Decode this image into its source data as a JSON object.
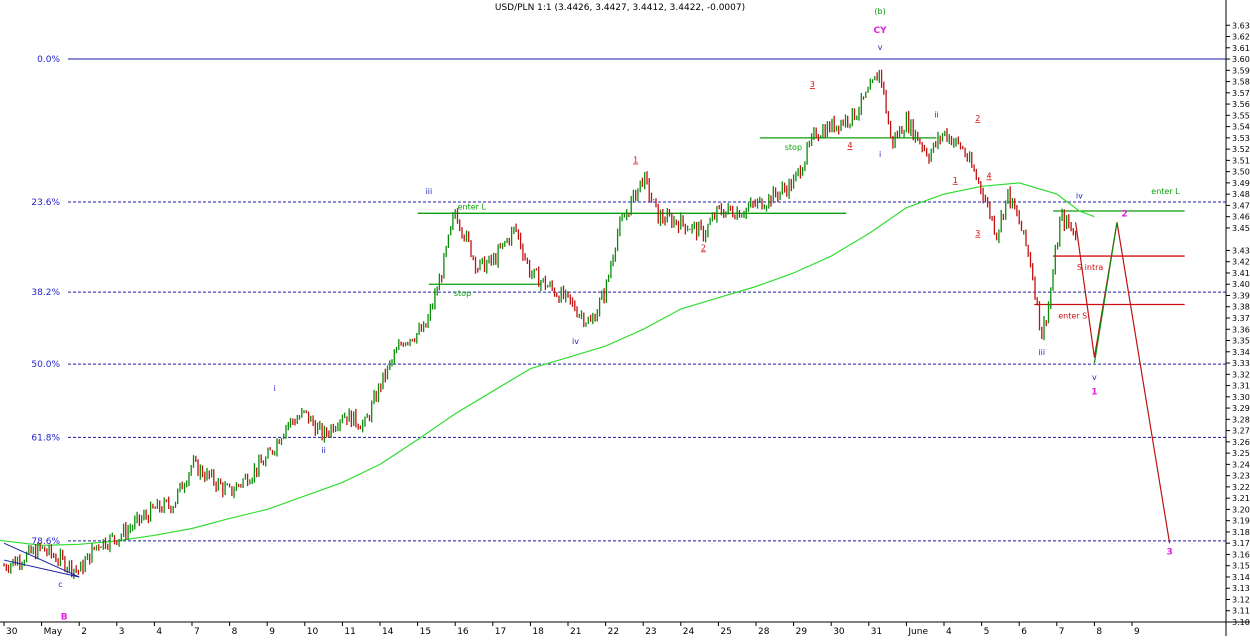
{
  "chart_data": {
    "type": "line",
    "title": "USD/PLN 1:1 (3.4426, 3.4427, 3.4412, 3.4422, -0.0007)",
    "y_ticks": [
      "3.63",
      "3.62",
      "3.61",
      "3.60",
      "3.59",
      "3.58",
      "3.57",
      "3.56",
      "3.55",
      "3.54",
      "3.53",
      "3.52",
      "3.51",
      "3.50",
      "3.49",
      "3.48",
      "3.47",
      "3.46",
      "3.45",
      "3.43",
      "3.42",
      "3.41",
      "3.40",
      "3.39",
      "3.38",
      "3.37",
      "3.36",
      "3.35",
      "3.34",
      "3.33",
      "3.32",
      "3.31",
      "3.30",
      "3.29",
      "3.28",
      "3.27",
      "3.26",
      "3.25",
      "3.24",
      "3.23",
      "3.22",
      "3.21",
      "3.20",
      "3.19",
      "3.18",
      "3.17",
      "3.16",
      "3.15",
      "3.14",
      "3.13",
      "3.12",
      "3.11",
      "3.10"
    ],
    "ylim": [
      3.1,
      3.64
    ],
    "x_ticks": [
      "30",
      "May",
      "2",
      "3",
      "4",
      "7",
      "8",
      "9",
      "10",
      "11",
      "14",
      "15",
      "16",
      "17",
      "18",
      "21",
      "22",
      "23",
      "24",
      "25",
      "28",
      "29",
      "30",
      "31",
      "June",
      "4",
      "5",
      "6",
      "7",
      "8",
      "9"
    ],
    "fib_levels": [
      {
        "label": "0.0%",
        "y": 3.6
      },
      {
        "label": "23.6%",
        "y": 3.473
      },
      {
        "label": "38.2%",
        "y": 3.393
      },
      {
        "label": "50.0%",
        "y": 3.329
      },
      {
        "label": "61.8%",
        "y": 3.264
      },
      {
        "label": "78.6%",
        "y": 3.172
      }
    ],
    "price_series": [
      {
        "x": 0,
        "y": 3.15
      },
      {
        "x": 1,
        "y": 3.165
      },
      {
        "x": 2,
        "y": 3.145
      },
      {
        "x": 2.5,
        "y": 3.17
      },
      {
        "x": 3,
        "y": 3.175
      },
      {
        "x": 4,
        "y": 3.2
      },
      {
        "x": 4.5,
        "y": 3.205
      },
      {
        "x": 5,
        "y": 3.24
      },
      {
        "x": 6,
        "y": 3.215
      },
      {
        "x": 7,
        "y": 3.245
      },
      {
        "x": 7.5,
        "y": 3.275
      },
      {
        "x": 8,
        "y": 3.285
      },
      {
        "x": 8.5,
        "y": 3.265
      },
      {
        "x": 9,
        "y": 3.285
      },
      {
        "x": 9.6,
        "y": 3.275
      },
      {
        "x": 10,
        "y": 3.31
      },
      {
        "x": 10.6,
        "y": 3.35
      },
      {
        "x": 11.2,
        "y": 3.36
      },
      {
        "x": 11.6,
        "y": 3.405
      },
      {
        "x": 12,
        "y": 3.465
      },
      {
        "x": 12.6,
        "y": 3.415
      },
      {
        "x": 13,
        "y": 3.42
      },
      {
        "x": 13.6,
        "y": 3.45
      },
      {
        "x": 14,
        "y": 3.41
      },
      {
        "x": 14.6,
        "y": 3.395
      },
      {
        "x": 15,
        "y": 3.385
      },
      {
        "x": 15.6,
        "y": 3.365
      },
      {
        "x": 16,
        "y": 3.395
      },
      {
        "x": 16.3,
        "y": 3.445
      },
      {
        "x": 17,
        "y": 3.495
      },
      {
        "x": 17.4,
        "y": 3.46
      },
      {
        "x": 18,
        "y": 3.455
      },
      {
        "x": 18.6,
        "y": 3.445
      },
      {
        "x": 19,
        "y": 3.465
      },
      {
        "x": 19.6,
        "y": 3.465
      },
      {
        "x": 20.3,
        "y": 3.475
      },
      {
        "x": 21,
        "y": 3.49
      },
      {
        "x": 21.6,
        "y": 3.535
      },
      {
        "x": 22,
        "y": 3.54
      },
      {
        "x": 22.6,
        "y": 3.55
      },
      {
        "x": 23,
        "y": 3.57
      },
      {
        "x": 23.3,
        "y": 3.59
      },
      {
        "x": 23.6,
        "y": 3.525
      },
      {
        "x": 24,
        "y": 3.545
      },
      {
        "x": 24.6,
        "y": 3.515
      },
      {
        "x": 25,
        "y": 3.535
      },
      {
        "x": 25.5,
        "y": 3.52
      },
      {
        "x": 26,
        "y": 3.485
      },
      {
        "x": 26.4,
        "y": 3.445
      },
      {
        "x": 26.7,
        "y": 3.48
      },
      {
        "x": 27,
        "y": 3.455
      },
      {
        "x": 27.3,
        "y": 3.42
      },
      {
        "x": 27.6,
        "y": 3.355
      },
      {
        "x": 27.8,
        "y": 3.385
      },
      {
        "x": 28.1,
        "y": 3.46
      },
      {
        "x": 28.5,
        "y": 3.445
      }
    ],
    "ma_series": [
      {
        "x": -1,
        "y": 3.176
      },
      {
        "x": 1,
        "y": 3.168
      },
      {
        "x": 2,
        "y": 3.169
      },
      {
        "x": 3,
        "y": 3.172
      },
      {
        "x": 4,
        "y": 3.177
      },
      {
        "x": 5,
        "y": 3.183
      },
      {
        "x": 6,
        "y": 3.192
      },
      {
        "x": 7,
        "y": 3.2
      },
      {
        "x": 8,
        "y": 3.212
      },
      {
        "x": 9,
        "y": 3.224
      },
      {
        "x": 10,
        "y": 3.24
      },
      {
        "x": 11,
        "y": 3.262
      },
      {
        "x": 12,
        "y": 3.285
      },
      {
        "x": 13,
        "y": 3.305
      },
      {
        "x": 14,
        "y": 3.325
      },
      {
        "x": 15,
        "y": 3.335
      },
      {
        "x": 16,
        "y": 3.345
      },
      {
        "x": 17,
        "y": 3.36
      },
      {
        "x": 18,
        "y": 3.378
      },
      {
        "x": 19,
        "y": 3.388
      },
      {
        "x": 20,
        "y": 3.398
      },
      {
        "x": 21,
        "y": 3.41
      },
      {
        "x": 22,
        "y": 3.425
      },
      {
        "x": 23,
        "y": 3.445
      },
      {
        "x": 24,
        "y": 3.468
      },
      {
        "x": 25,
        "y": 3.48
      },
      {
        "x": 26,
        "y": 3.487
      },
      {
        "x": 27,
        "y": 3.49
      },
      {
        "x": 28,
        "y": 3.48
      },
      {
        "x": 28.6,
        "y": 3.465
      },
      {
        "x": 29,
        "y": 3.46
      }
    ],
    "projection_green": [
      {
        "x": 29,
        "y": 3.33
      },
      {
        "x": 29.6,
        "y": 3.455
      }
    ],
    "projection_red": [
      {
        "x": 28.5,
        "y": 3.455
      },
      {
        "x": 29,
        "y": 3.335
      },
      {
        "x": 29.6,
        "y": 3.455
      },
      {
        "x": 31,
        "y": 3.17
      }
    ],
    "level_lines": [
      {
        "label": "enter L",
        "y": 3.463,
        "x1": 11,
        "x2": 22.4,
        "color": "#0a9e0a"
      },
      {
        "label": "stop",
        "y": 3.4,
        "x1": 11.3,
        "x2": 14.3,
        "color": "#0a9e0a"
      },
      {
        "label": "stop",
        "y": 3.53,
        "x1": 20.1,
        "x2": 24.8,
        "color": "#0a9e0a"
      },
      {
        "label": "enter L",
        "y": 3.465,
        "x1": 27.9,
        "x2": 31.4,
        "color": "#0a9e0a"
      },
      {
        "label": "S intra",
        "y": 3.425,
        "x1": 27.9,
        "x2": 31.4,
        "color": "#d01010"
      },
      {
        "label": "enter S",
        "y": 3.382,
        "x1": 27.4,
        "x2": 31.4,
        "color": "#d01010"
      }
    ],
    "wave_labels": [
      {
        "text": "(b)",
        "x": 23.3,
        "y": 3.64,
        "color": "#0a9e0a"
      },
      {
        "text": "CY",
        "x": 23.3,
        "y": 3.623,
        "color": "#e020e0"
      },
      {
        "text": "v",
        "x": 23.3,
        "y": 3.608,
        "color": "#2323cc"
      },
      {
        "text": "i",
        "x": 23.3,
        "y": 3.513,
        "color": "#2323cc"
      },
      {
        "text": "iii",
        "x": 11.3,
        "y": 3.48,
        "color": "#2323cc"
      },
      {
        "text": "iv",
        "x": 15.2,
        "y": 3.347,
        "color": "#2323cc"
      },
      {
        "text": "i",
        "x": 7.2,
        "y": 3.305,
        "color": "#2323cc"
      },
      {
        "text": "ii",
        "x": 8.5,
        "y": 3.25,
        "color": "#2323cc"
      },
      {
        "text": "c",
        "x": 1.5,
        "y": 3.131,
        "color": "#2323cc"
      },
      {
        "text": "B",
        "x": 1.6,
        "y": 3.102,
        "color": "#e020e0"
      },
      {
        "text": "ii",
        "x": 24.8,
        "y": 3.548,
        "color": "#2323cc"
      },
      {
        "text": "iii",
        "x": 27.6,
        "y": 3.337,
        "color": "#2323cc"
      },
      {
        "text": "iv",
        "x": 28.6,
        "y": 3.476,
        "color": "#2323cc"
      },
      {
        "text": "v",
        "x": 29.0,
        "y": 3.315,
        "color": "#2323cc"
      },
      {
        "text": "1",
        "x": 29.0,
        "y": 3.302,
        "color": "#e020e0"
      },
      {
        "text": "2",
        "x": 29.8,
        "y": 3.46,
        "color": "#e020e0"
      },
      {
        "text": "3",
        "x": 31.0,
        "y": 3.16,
        "color": "#e020e0"
      },
      {
        "text": "1",
        "x": 16.8,
        "y": 3.508,
        "color": "#d01010"
      },
      {
        "text": "2",
        "x": 18.6,
        "y": 3.43,
        "color": "#d01010"
      },
      {
        "text": "3",
        "x": 21.5,
        "y": 3.575,
        "color": "#d01010"
      },
      {
        "text": "4",
        "x": 22.5,
        "y": 3.521,
        "color": "#d01010"
      },
      {
        "text": "2",
        "x": 25.9,
        "y": 3.545,
        "color": "#d01010"
      },
      {
        "text": "1",
        "x": 25.3,
        "y": 3.49,
        "color": "#d01010"
      },
      {
        "text": "4",
        "x": 26.2,
        "y": 3.494,
        "color": "#d01010"
      },
      {
        "text": "3",
        "x": 25.9,
        "y": 3.443,
        "color": "#d01010"
      }
    ],
    "colors": {
      "price_up": "#0a8c0a",
      "price_down": "#c01010",
      "moving_average": "#33dd33",
      "fib_line": "#1a1aa8",
      "fib_label": "#2323cc",
      "axis_text": "#000000"
    },
    "grid": false,
    "legend": "none"
  }
}
